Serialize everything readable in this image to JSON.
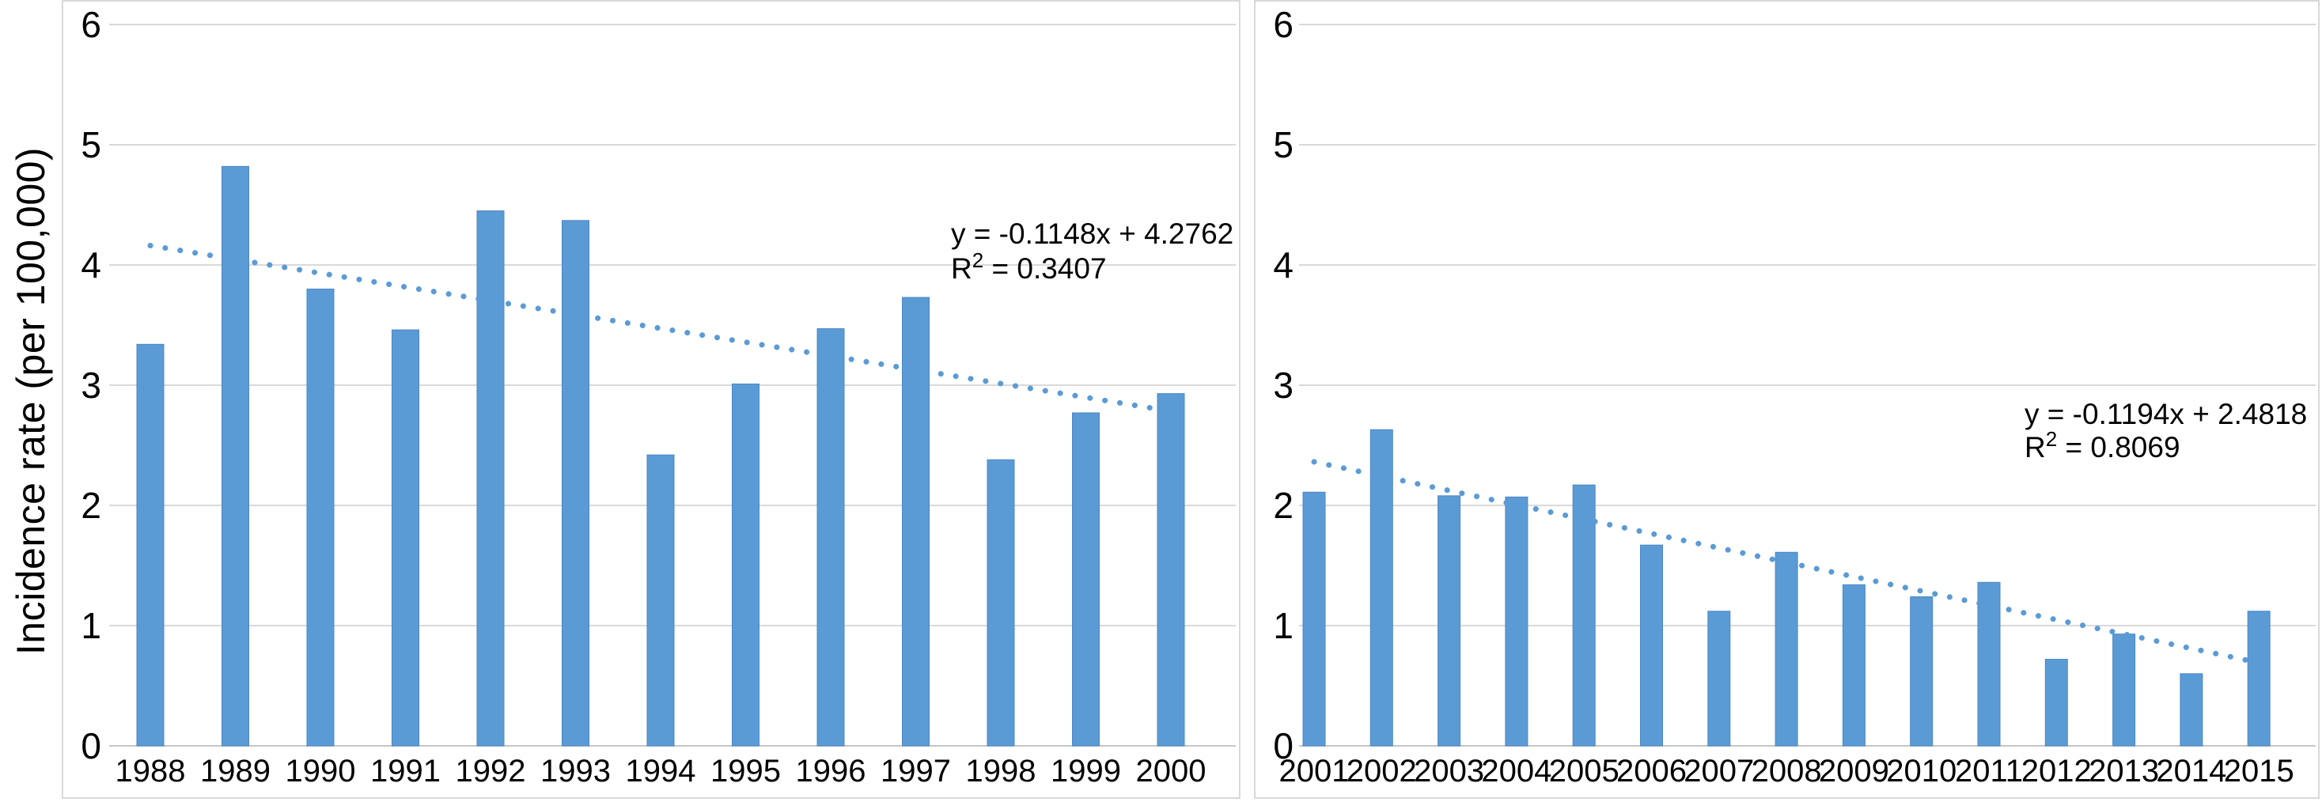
{
  "figure": {
    "y_axis_title": "Incidence rate (per 100,000)",
    "bar_color": "#5B9BD5",
    "bar_edge_color": "#4C87C5",
    "trendline_color": "#5B9BD5",
    "gridline_color": "#D9D9D9",
    "baseline_color": "#C6C6C6",
    "panel_border_color": "#D9D9D9",
    "text_color": "#000000"
  },
  "chart_data": [
    {
      "type": "bar",
      "panel": "left",
      "title": "",
      "xlabel": "",
      "ylabel": "Incidence rate (per 100,000)",
      "categories": [
        "1988",
        "1989",
        "1990",
        "1991",
        "1992",
        "1993",
        "1994",
        "1995",
        "1996",
        "1997",
        "1998",
        "1999",
        "2000"
      ],
      "values": [
        3.34,
        4.82,
        3.8,
        3.46,
        4.45,
        4.37,
        2.42,
        3.01,
        3.47,
        3.73,
        2.38,
        2.77,
        2.93
      ],
      "ylim": [
        0,
        6
      ],
      "yticks": [
        "0",
        "1",
        "2",
        "3",
        "4",
        "5",
        "6"
      ],
      "grid": true,
      "legend": "none",
      "trendline": {
        "style": "dotted",
        "slope": -0.1148,
        "intercept": 4.2762,
        "r_squared": 0.3407,
        "equation_text": "y = -0.1148x + 4.2762",
        "r2_prefix": "R",
        "r2_superscript": "2",
        "r2_suffix": " = 0.3407"
      }
    },
    {
      "type": "bar",
      "panel": "right",
      "title": "",
      "xlabel": "",
      "ylabel": "",
      "categories": [
        "2001",
        "2002",
        "2003",
        "2004",
        "2005",
        "2006",
        "2007",
        "2008",
        "2009",
        "2010",
        "2011",
        "2012",
        "2013",
        "2014",
        "2015"
      ],
      "values": [
        2.11,
        2.63,
        2.08,
        2.07,
        2.17,
        1.67,
        1.12,
        1.61,
        1.34,
        1.24,
        1.36,
        0.72,
        0.93,
        0.6,
        1.12
      ],
      "ylim": [
        0,
        6
      ],
      "yticks": [
        "0",
        "1",
        "2",
        "3",
        "4",
        "5",
        "6"
      ],
      "grid": true,
      "legend": "none",
      "trendline": {
        "style": "dotted",
        "slope": -0.1194,
        "intercept": 2.4818,
        "r_squared": 0.8069,
        "equation_text": "y = -0.1194x + 2.4818",
        "r2_prefix": "R",
        "r2_superscript": "2",
        "r2_suffix": " = 0.8069"
      }
    }
  ]
}
